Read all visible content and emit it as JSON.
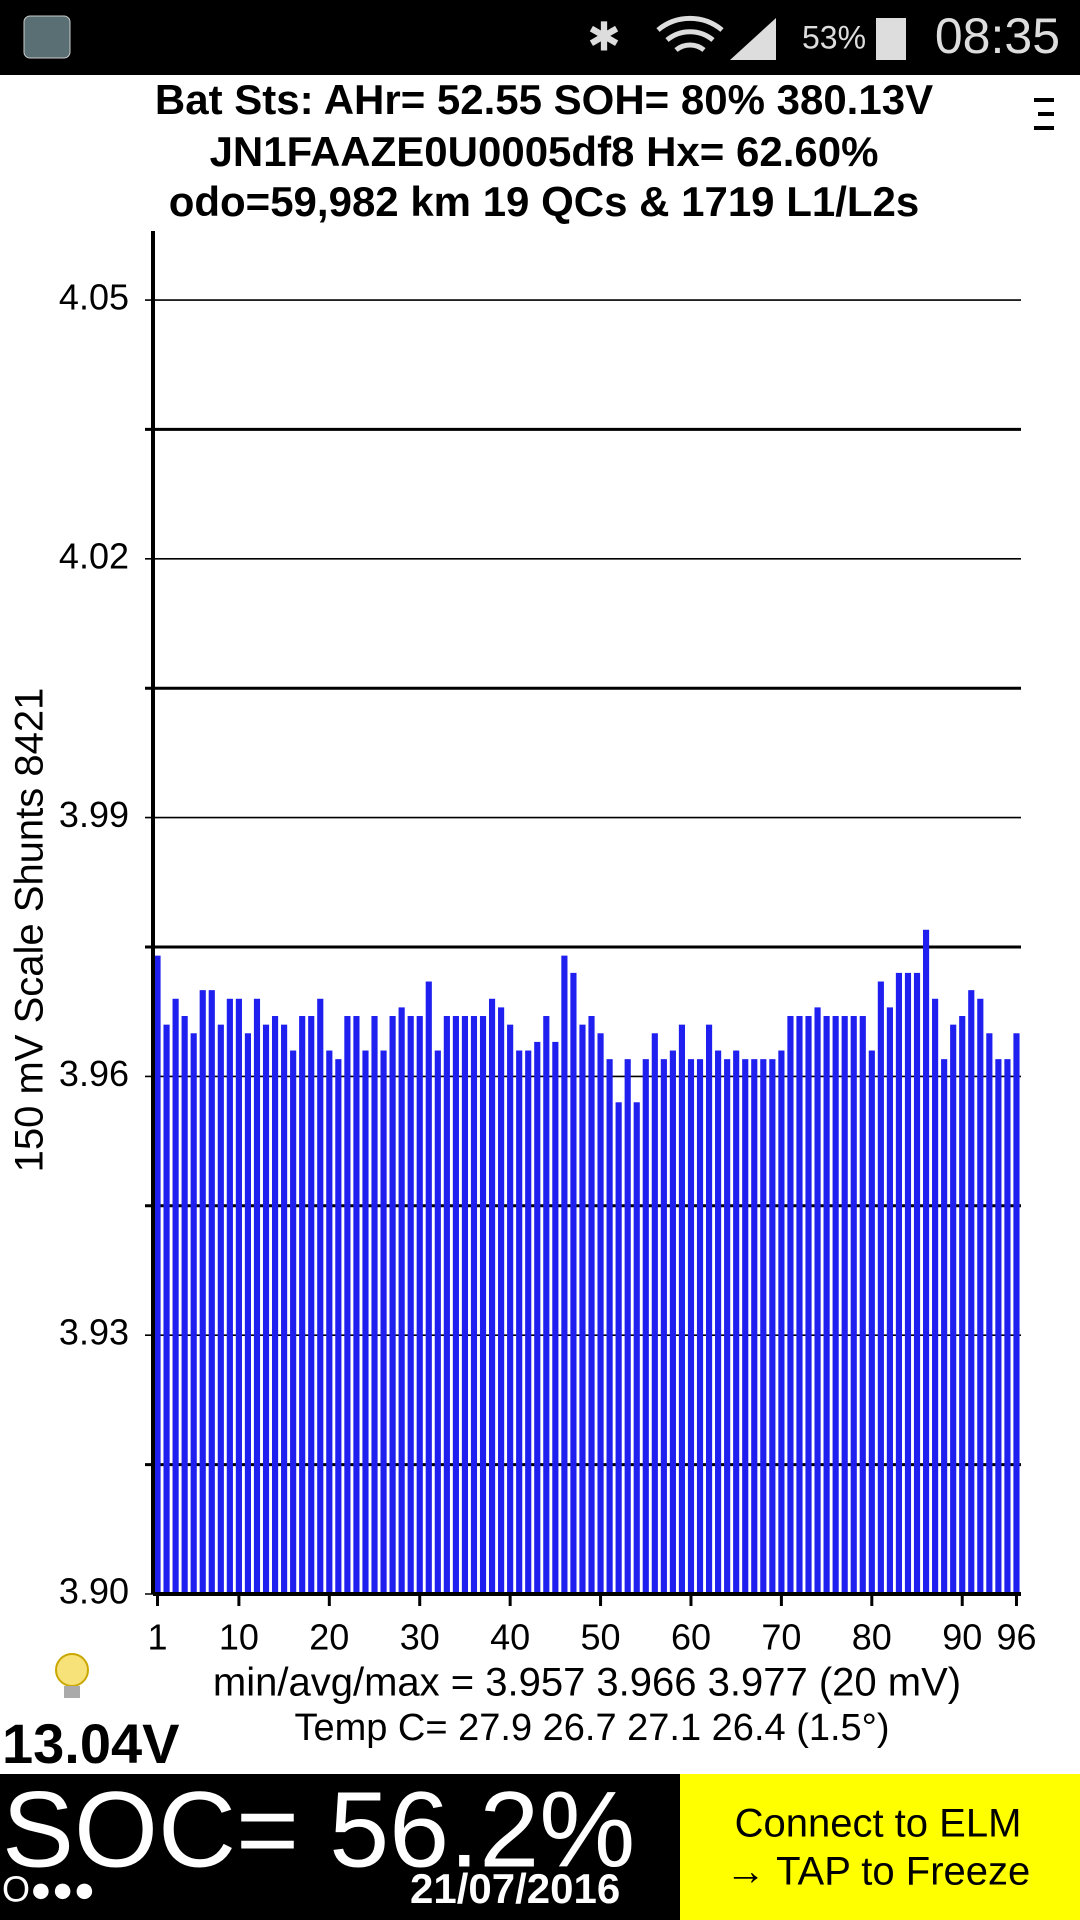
{
  "status_bar": {
    "battery": "53%",
    "time": "08:35"
  },
  "header": {
    "lines": [
      "Bat Sts: AHr= 52.55 SOH= 80% 380.13V",
      "JN1FAAZE0U0005df8   Hx= 62.60%",
      "odo=59,982 km 19 QCs & 1719 L1/L2s"
    ]
  },
  "chart_data": {
    "type": "bar",
    "y_label": "150 mV Scale   Shunts 8421",
    "categories": [
      "1",
      null,
      null,
      null,
      null,
      null,
      null,
      null,
      null,
      "10",
      null,
      null,
      null,
      null,
      null,
      null,
      null,
      null,
      null,
      "20",
      null,
      null,
      null,
      null,
      null,
      null,
      null,
      null,
      null,
      "30",
      null,
      null,
      null,
      null,
      null,
      null,
      null,
      null,
      null,
      "40",
      null,
      null,
      null,
      null,
      null,
      null,
      null,
      null,
      null,
      "50",
      null,
      null,
      null,
      null,
      null,
      null,
      null,
      null,
      null,
      "60",
      null,
      null,
      null,
      null,
      null,
      null,
      null,
      null,
      null,
      "70",
      null,
      null,
      null,
      null,
      null,
      null,
      null,
      null,
      null,
      "80",
      null,
      null,
      null,
      null,
      null,
      null,
      null,
      null,
      null,
      "90",
      null,
      null,
      null,
      null,
      null,
      "96"
    ],
    "values": [
      3.974,
      3.966,
      3.969,
      3.967,
      3.965,
      3.97,
      3.97,
      3.966,
      3.969,
      3.969,
      3.965,
      3.969,
      3.966,
      3.967,
      3.966,
      3.963,
      3.967,
      3.967,
      3.969,
      3.963,
      3.962,
      3.967,
      3.967,
      3.963,
      3.967,
      3.963,
      3.967,
      3.968,
      3.967,
      3.967,
      3.971,
      3.963,
      3.967,
      3.967,
      3.967,
      3.967,
      3.967,
      3.969,
      3.968,
      3.966,
      3.963,
      3.963,
      3.964,
      3.967,
      3.964,
      3.974,
      3.972,
      3.966,
      3.967,
      3.965,
      3.962,
      3.957,
      3.962,
      3.957,
      3.962,
      3.965,
      3.962,
      3.963,
      3.966,
      3.962,
      3.962,
      3.966,
      3.963,
      3.962,
      3.963,
      3.962,
      3.962,
      3.962,
      3.962,
      3.963,
      3.967,
      3.967,
      3.967,
      3.968,
      3.967,
      3.967,
      3.967,
      3.967,
      3.967,
      3.963,
      3.971,
      3.968,
      3.972,
      3.972,
      3.972,
      3.977,
      3.969,
      3.962,
      3.966,
      3.967,
      3.97,
      3.969,
      3.965,
      3.962,
      3.962,
      3.965
    ],
    "color": "#1f1ff0",
    "ylim": [
      3.9,
      4.058
    ],
    "yticks": [
      {
        "value": 3.9,
        "label": "3.90"
      },
      3.93,
      3.96,
      3.99,
      4.02,
      4.05
    ],
    "minor_yticks": [
      3.915,
      3.945,
      3.975,
      4.005,
      4.035
    ],
    "grid": true
  },
  "footer": {
    "stats": "min/avg/max = 3.957 3.966 3.977  (20 mV)",
    "temp": "Temp C= 27.9  26.7  27.1  26.4  (1.5°)",
    "voltage": "13.04V",
    "soc": "SOC= 56.2%",
    "date": "21/07/2016",
    "dots": "O●●●",
    "button": [
      "Connect to ELM",
      "→ TAP to Freeze"
    ]
  }
}
